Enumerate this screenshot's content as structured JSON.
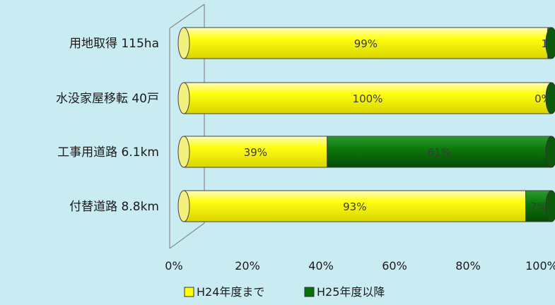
{
  "chart_data": {
    "type": "bar",
    "orientation": "horizontal",
    "stacked": true,
    "categories": [
      "用地取得 115ha",
      "水没家屋移転 40戸",
      "工事用道路 6.1km",
      "付替道路 8.8km"
    ],
    "series": [
      {
        "name": "H24年度まで",
        "values": [
          99,
          100,
          39,
          93
        ],
        "labels": [
          "99%",
          "100%",
          "39%",
          "93%"
        ],
        "color": "#ffff00"
      },
      {
        "name": "H25年度以降",
        "values": [
          1,
          0,
          61,
          7
        ],
        "labels": [
          "1%",
          "0%",
          "61%",
          "7%"
        ],
        "color": "#0b6e0b"
      }
    ],
    "xlim": [
      0,
      100
    ],
    "xticks": [
      "0%",
      "20%",
      "40%",
      "60%",
      "80%",
      "100%"
    ],
    "grid": false,
    "legend": "bottom"
  }
}
